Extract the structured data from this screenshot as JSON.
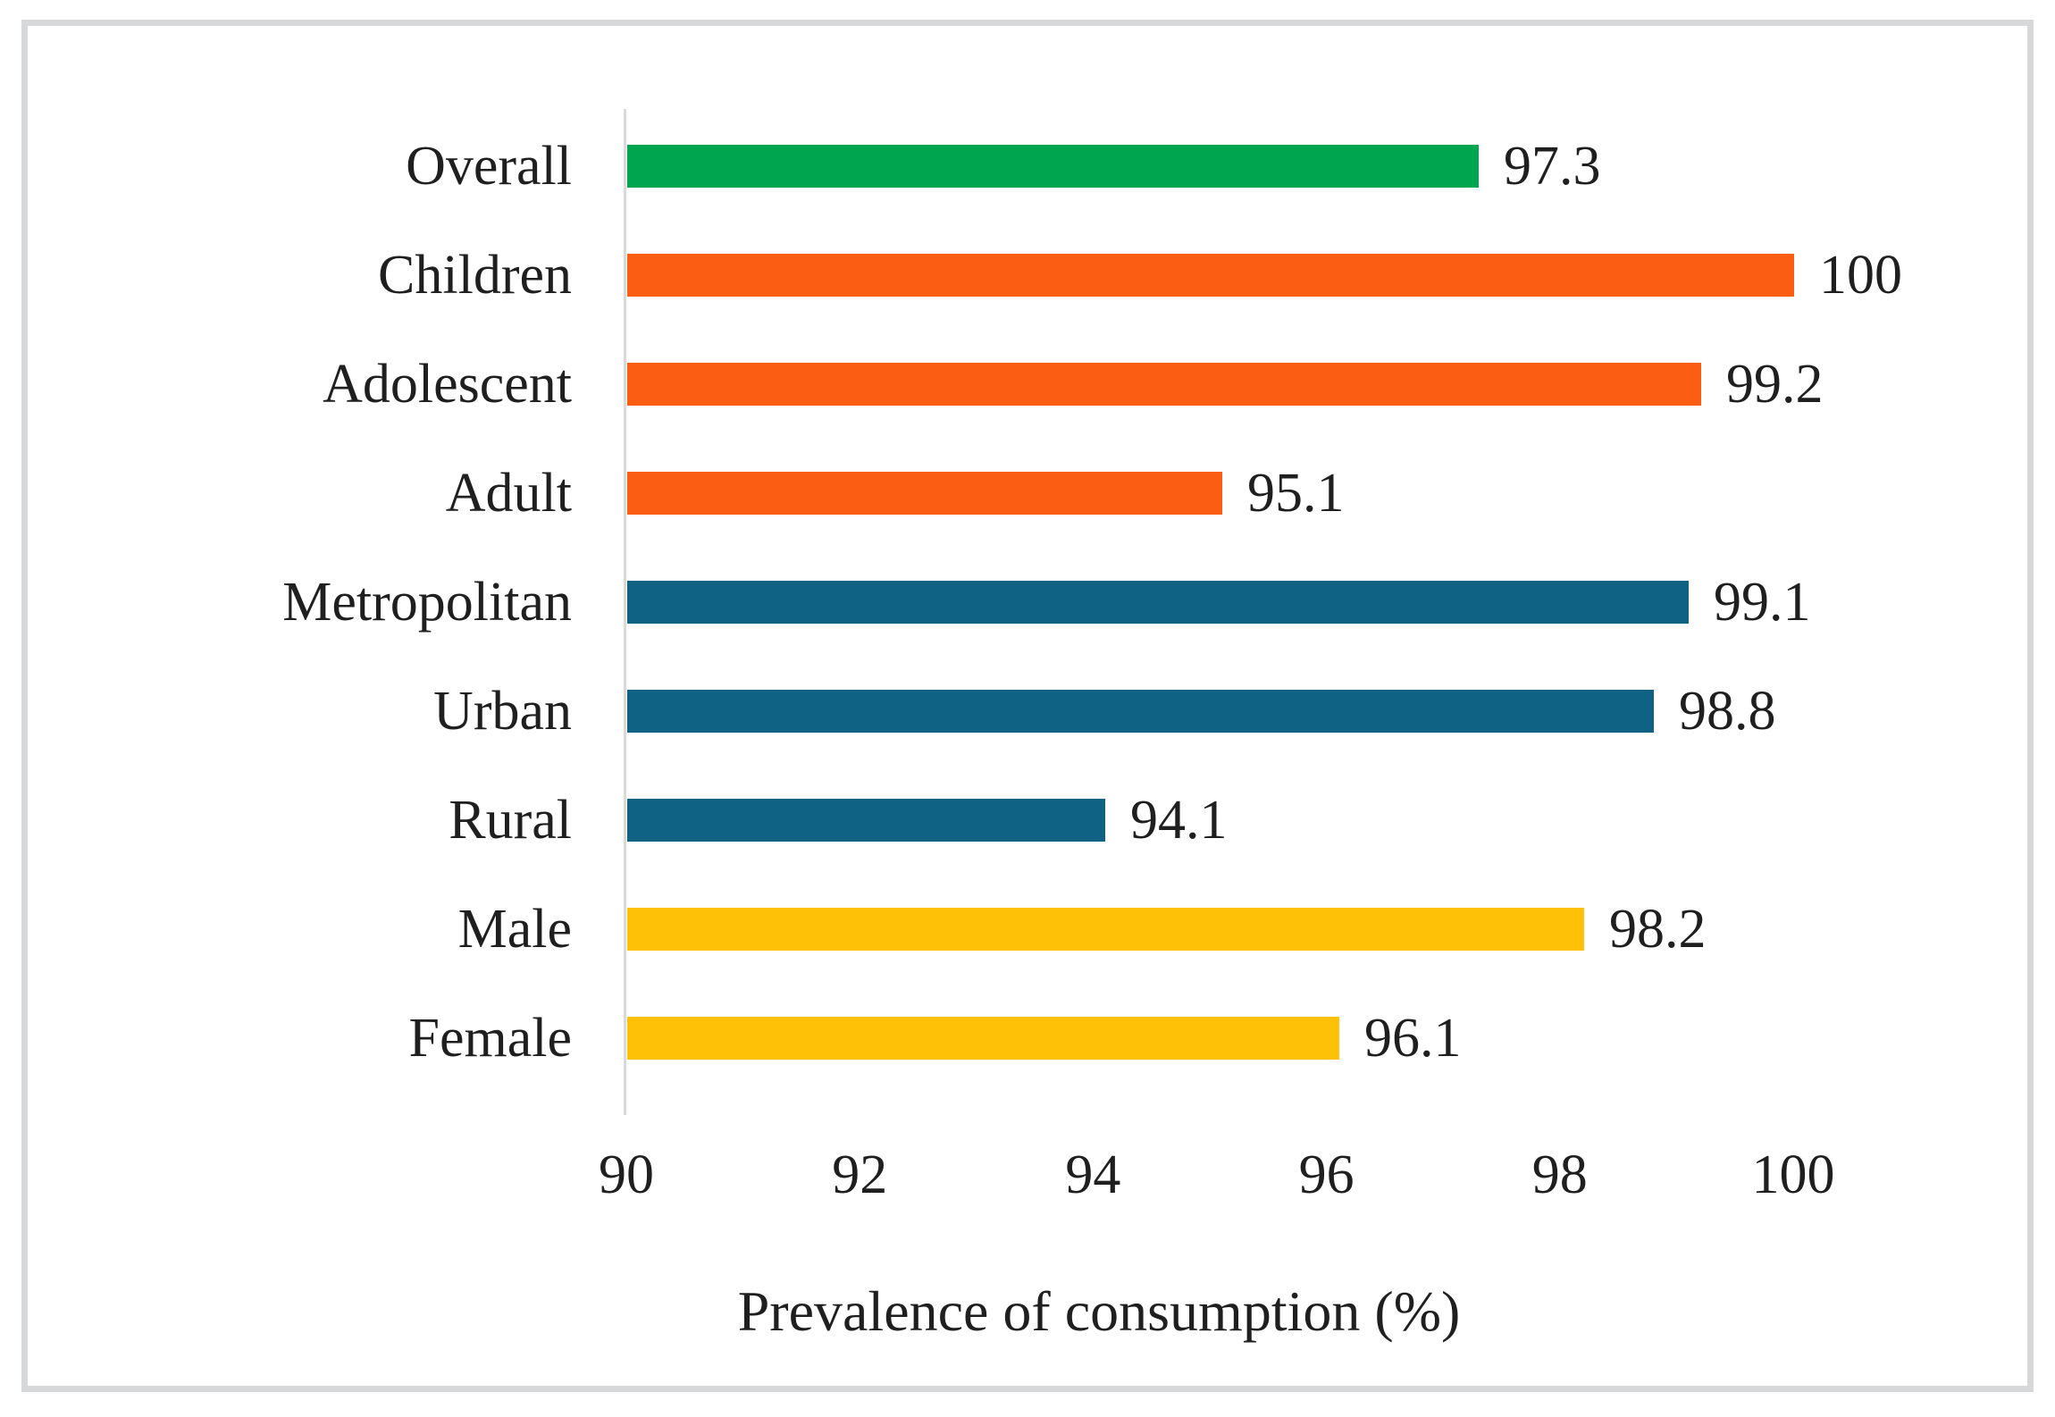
{
  "frame": {
    "border_color": "#D6D8DA"
  },
  "axis": {
    "line_color": "#D9D9D9",
    "text_color": "#1F1F1F"
  },
  "chart_data": {
    "type": "bar",
    "orientation": "horizontal",
    "title": "",
    "xlabel": "Prevalence of consumption (%)",
    "ylabel": "",
    "xlim": [
      90,
      100
    ],
    "x_ticks": [
      90,
      92,
      94,
      96,
      98,
      100
    ],
    "grid": false,
    "legend_position": "none",
    "categories": [
      "Overall",
      "Children",
      "Adolescent",
      "Adult",
      "Metropolitan",
      "Urban",
      "Rural",
      "Male",
      "Female"
    ],
    "values": [
      97.3,
      100,
      99.2,
      95.1,
      99.1,
      98.8,
      94.1,
      98.2,
      96.1
    ],
    "value_labels": [
      "97.3",
      "100",
      "99.2",
      "95.1",
      "99.1",
      "98.8",
      "94.1",
      "98.2",
      "96.1"
    ],
    "bar_colors": [
      "#00A64F",
      "#FB5E13",
      "#FB5E13",
      "#FB5E13",
      "#0F6284",
      "#0F6284",
      "#0F6284",
      "#FFC107",
      "#FFC107"
    ],
    "color_groups": {
      "overall": "#00A64F",
      "age": "#FB5E13",
      "residence": "#0F6284",
      "sex": "#FFC107"
    }
  }
}
